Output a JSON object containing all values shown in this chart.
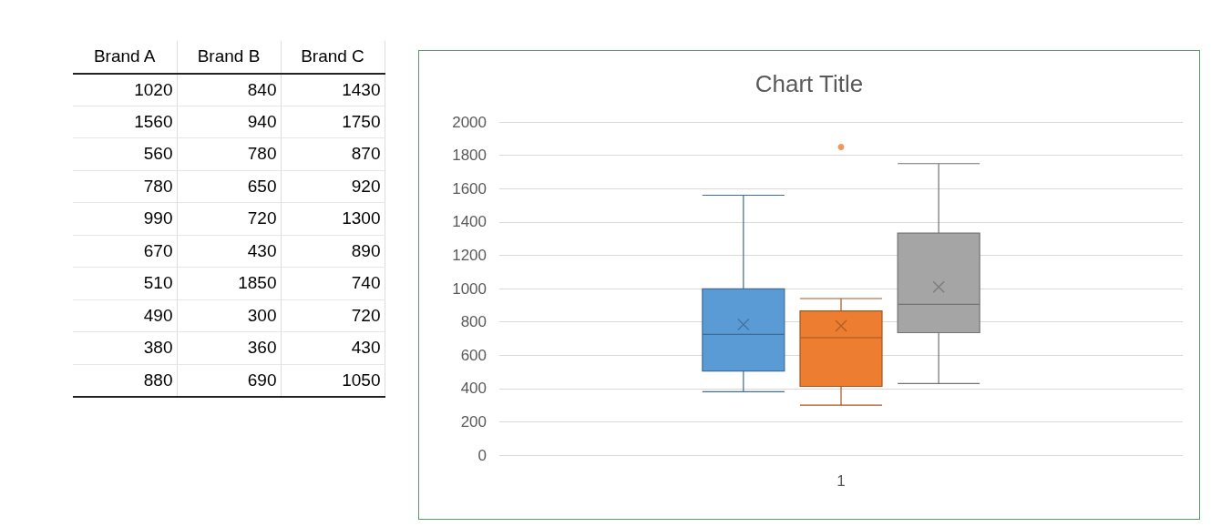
{
  "chart_data": [
    {
      "type": "other",
      "categories": [
        "Brand A",
        "Brand B",
        "Brand C"
      ],
      "data_labels": true,
      "series": [
        {
          "values": [
            1020,
            840,
            1430
          ]
        },
        {
          "values": [
            1560,
            940,
            1750
          ]
        },
        {
          "values": [
            560,
            780,
            870
          ]
        },
        {
          "values": [
            780,
            650,
            920
          ]
        },
        {
          "values": [
            990,
            720,
            1300
          ]
        },
        {
          "values": [
            670,
            430,
            890
          ]
        },
        {
          "values": [
            510,
            1850,
            740
          ]
        },
        {
          "values": [
            490,
            300,
            720
          ]
        },
        {
          "values": [
            380,
            360,
            430
          ]
        },
        {
          "values": [
            880,
            690,
            1050
          ]
        }
      ]
    },
    {
      "type": "box",
      "title": "Chart Title",
      "categories": [
        "1"
      ],
      "series": [
        {
          "color": "#5b9bd5",
          "boxes": [
            {
              "low": 380,
              "q1": 505,
              "median": 725,
              "q3": 997.5,
              "high": 1560,
              "mean": 784
            }
          ]
        },
        {
          "color": "#ed7d31",
          "boxes": [
            {
              "low": 300,
              "q1": 412.5,
              "median": 705,
              "q3": 865,
              "high": 940,
              "mean": 776,
              "outliers": [
                1850
              ]
            }
          ]
        },
        {
          "color": "#a5a5a5",
          "boxes": [
            {
              "low": 430,
              "q1": 735,
              "median": 905,
              "q3": 1332.5,
              "high": 1750,
              "mean": 1010
            }
          ]
        }
      ],
      "ylim": [
        0,
        2000
      ],
      "yticks": [
        0,
        200,
        400,
        600,
        800,
        1000,
        1200,
        1400,
        1600,
        1800,
        2000
      ],
      "grid": "y"
    }
  ]
}
